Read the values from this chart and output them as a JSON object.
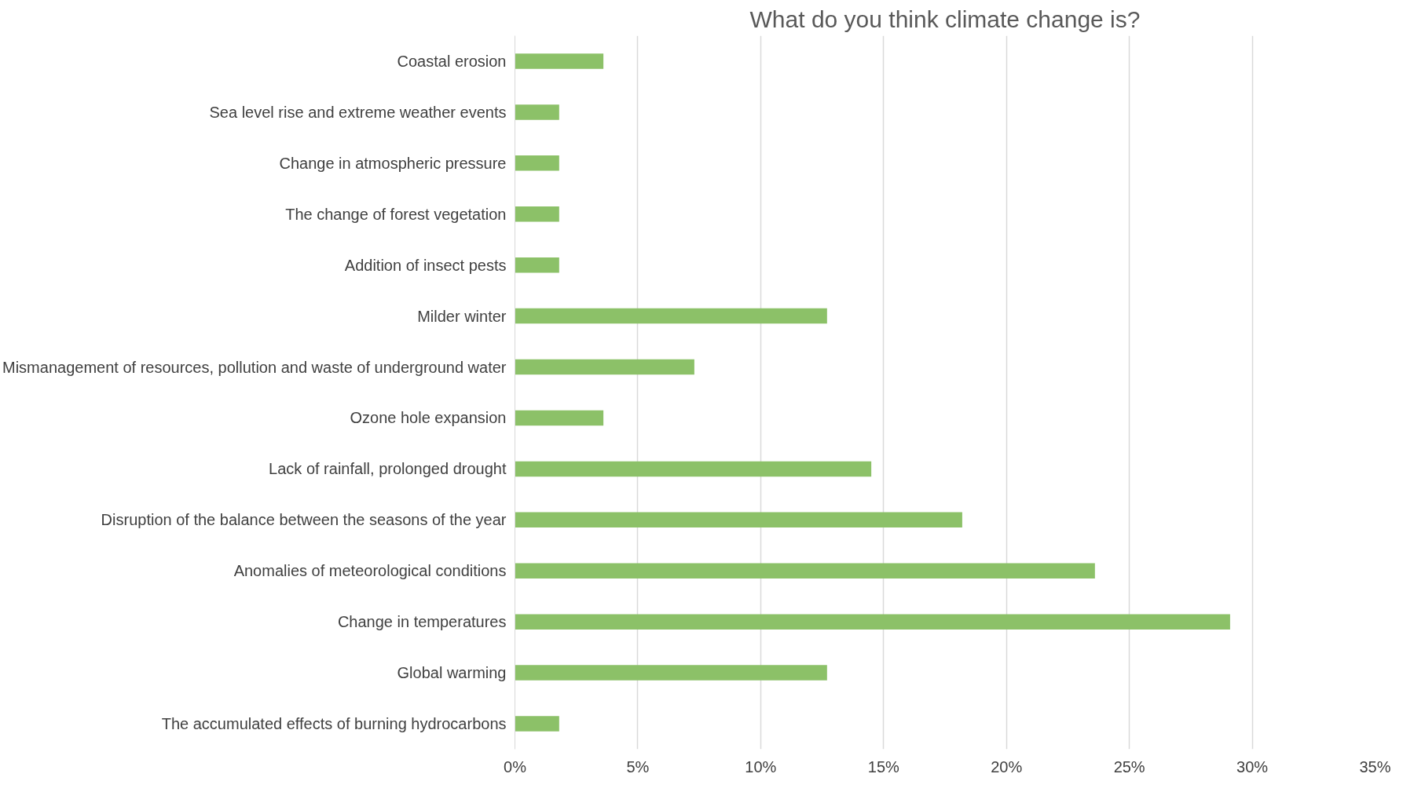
{
  "chart_data": {
    "type": "bar",
    "orientation": "horizontal",
    "title": "What do you think climate change is?",
    "categories": [
      "Coastal erosion",
      "Sea level rise and extreme weather events",
      "Change in atmospheric pressure",
      "The change of forest vegetation",
      "Addition of insect pests",
      "Milder winter",
      "Mismanagement of resources, pollution and waste of underground water",
      "Ozone hole expansion",
      "Lack of rainfall, prolonged drought",
      "Disruption of the balance between the seasons of the year",
      "Anomalies of meteorological conditions",
      "Change in temperatures",
      "Global warming",
      "The accumulated effects of burning hydrocarbons"
    ],
    "values": [
      3.6,
      1.8,
      1.8,
      1.8,
      1.8,
      12.7,
      7.3,
      3.6,
      14.5,
      18.2,
      23.6,
      29.1,
      12.7,
      1.8
    ],
    "color": "#8cc168",
    "xlim": [
      0,
      35
    ],
    "xticks": [
      {
        "value": 0,
        "label": "0%"
      },
      {
        "value": 5,
        "label": "5%"
      },
      {
        "value": 10,
        "label": "10%"
      },
      {
        "value": 15,
        "label": "15%"
      },
      {
        "value": 20,
        "label": "20%"
      },
      {
        "value": 25,
        "label": "25%"
      },
      {
        "value": 30,
        "label": "30%"
      },
      {
        "value": 35,
        "label": "35%"
      }
    ],
    "grid": "x"
  }
}
